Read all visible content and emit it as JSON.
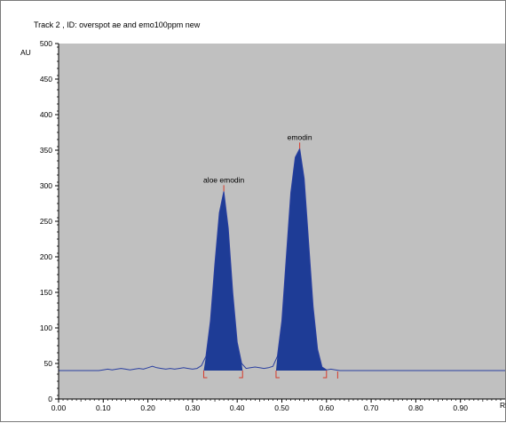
{
  "chart_data": {
    "type": "area",
    "title": "Track  2 , ID: overspot ae and emo100ppm new",
    "xlabel": "Rf",
    "ylabel": "AU",
    "xlim": [
      0.0,
      1.0
    ],
    "ylim": [
      0,
      500
    ],
    "xticks": [
      "0.00",
      "0.10",
      "0.20",
      "0.30",
      "0.40",
      "0.50",
      "0.60",
      "0.70",
      "0.80",
      "0.90"
    ],
    "yticks": [
      "0",
      "50",
      "100",
      "150",
      "200",
      "250",
      "300",
      "350",
      "400",
      "450",
      "500"
    ],
    "baseline": 40,
    "series": [
      {
        "x": [
          0.0,
          0.09,
          0.1,
          0.11,
          0.12,
          0.13,
          0.14,
          0.15,
          0.16,
          0.17,
          0.18,
          0.19,
          0.2,
          0.21,
          0.22,
          0.23,
          0.24,
          0.25,
          0.26,
          0.27,
          0.28,
          0.29,
          0.3,
          0.31,
          0.32,
          0.33,
          0.34,
          0.35,
          0.36,
          0.37,
          0.38,
          0.39,
          0.4,
          0.41,
          0.42,
          0.43,
          0.44,
          0.45,
          0.46,
          0.47,
          0.48,
          0.49,
          0.5,
          0.51,
          0.52,
          0.53,
          0.54,
          0.55,
          0.56,
          0.57,
          0.58,
          0.59,
          0.6,
          0.61,
          0.62,
          0.63,
          1.0
        ],
        "y": [
          40,
          40,
          41,
          42,
          41,
          42,
          43,
          42,
          41,
          42,
          43,
          42,
          44,
          46,
          44,
          43,
          42,
          43,
          42,
          43,
          44,
          43,
          42,
          43,
          47,
          60,
          110,
          190,
          262,
          292,
          240,
          150,
          80,
          50,
          43,
          44,
          45,
          44,
          43,
          44,
          46,
          60,
          110,
          200,
          290,
          340,
          352,
          310,
          220,
          130,
          70,
          45,
          41,
          42,
          41,
          40,
          40
        ]
      }
    ],
    "peaks": [
      {
        "label": "aloe emodin",
        "x": 0.37,
        "y": 292,
        "start": 0.325,
        "end": 0.412
      },
      {
        "label": "emodin",
        "x": 0.54,
        "y": 352,
        "start": 0.487,
        "end": 0.6
      }
    ],
    "markers": [
      0.625
    ],
    "grid": false
  },
  "colors": {
    "plot_bg": "#c0c0c0",
    "line": "#2a3fa0",
    "fill": "#1e3c96",
    "marker": "#d63a2a"
  }
}
